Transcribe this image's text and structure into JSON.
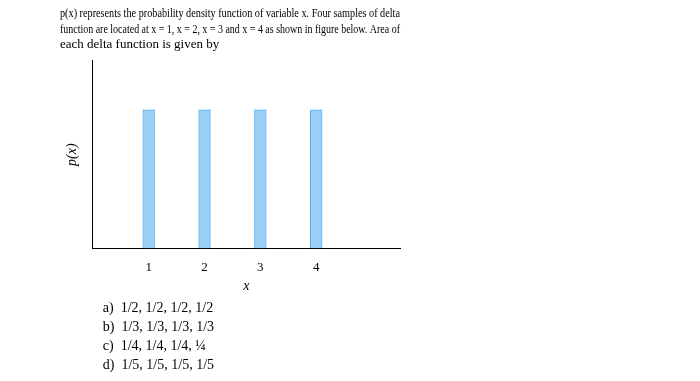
{
  "chart_data": {
    "type": "bar",
    "title": [
      "p(x) represents the probability density function of variable x. Four samples of delta",
      "function are located at x = 1, x = 2, x = 3 and x = 4 as shown in figure below. Area of",
      "each delta function is given by"
    ],
    "x": [
      1,
      2,
      3,
      4
    ],
    "values": [
      1.0,
      1.0,
      1.0,
      1.0
    ],
    "x_label": "x",
    "y_label": "p(x)",
    "xlim": [
      0.0,
      5.5
    ],
    "xticks": [
      1,
      2,
      3,
      4
    ],
    "ylim": [
      0.0,
      1.35
    ],
    "tick_labels": "x",
    "grid": false,
    "annotations": [
      "a)  1/2, 1/2, 1/2, 1/2",
      "b)  1/3, 1/3, 1/3, 1/3",
      "c)  1/4, 1/4, 1/4, ¼",
      "d)  1/5, 1/5, 1/5, 1/5"
    ]
  }
}
